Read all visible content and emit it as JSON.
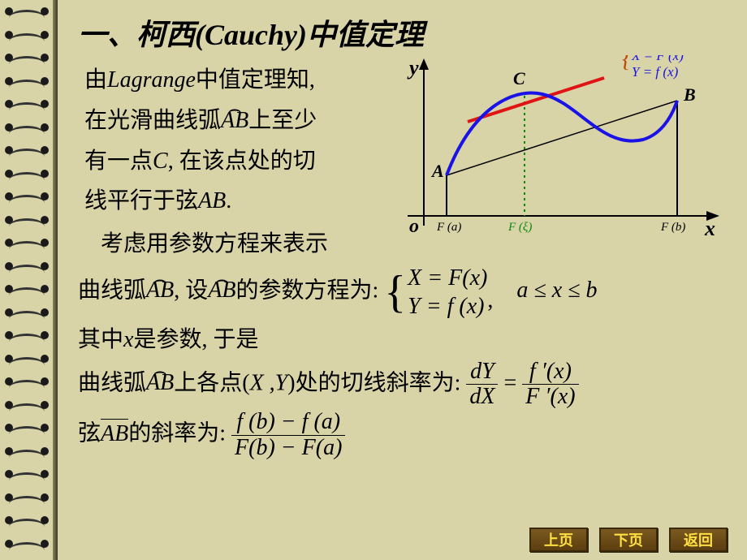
{
  "title": "一、柯西(Cauchy)中值定理",
  "intro": {
    "line1_a": "由",
    "line1_i": "Lagrange",
    "line1_b": "中值定理知,",
    "line2_a": "在光滑曲线弧",
    "line2_arc": "AB",
    "line2_b": "上至少",
    "line3_a": "有一点",
    "line3_i": "C",
    "line3_b": ", 在该点处的切",
    "line4_a": "线平行于弦",
    "line4_i": "AB",
    "line4_b": "."
  },
  "mid": {
    "l1": "考虑用参数方程来表示",
    "l2_a": "曲线弧",
    "l2_arc": "AB",
    "l2_b": ",  设",
    "l2_arc2": "AB",
    "l2_c": "的参数方程为:",
    "param_top": "X = F(x)",
    "param_bot": "Y = f (x)",
    "param_comma": ",",
    "range": "a ≤ x ≤ b",
    "l3_a": "其中",
    "l3_i": "x",
    "l3_b": "是参数, 于是",
    "l4_a": "曲线弧",
    "l4_arc": "AB",
    "l4_b": "上各点(",
    "l4_xy": "X ,Y",
    "l4_c": ")处的切线斜率为:",
    "slope_num": "dY",
    "slope_den": "dX",
    "slope_eq": " = ",
    "slope2_num": "f ′(x)",
    "slope2_den": "F ′(x)",
    "l5_a": "弦",
    "l5_bar": "AB",
    "l5_b": "的斜率为:",
    "chord_num": "f (b) − f (a)",
    "chord_den": "F(b) − F(a)"
  },
  "graph": {
    "y_label": "y",
    "x_label": "x",
    "o_label": "o",
    "A": "A",
    "B": "B",
    "C": "C",
    "Fa": "F (a)",
    "Fxi": "F (ξ)",
    "Fb": "F (b)",
    "legend_top": "X = F (x)",
    "legend_bot": "Y = f (x)",
    "colors": {
      "axis": "#000000",
      "curve": "#1a12e6",
      "tangent": "#e01414",
      "chord": "#000000",
      "cdrop": "#0c8a0c",
      "legend_brace": "#c04a0a",
      "legend_text": "#1a12e6",
      "xi_text": "#0c8a0c"
    }
  },
  "buttons": {
    "prev": "上页",
    "next": "下页",
    "back": "返回"
  }
}
